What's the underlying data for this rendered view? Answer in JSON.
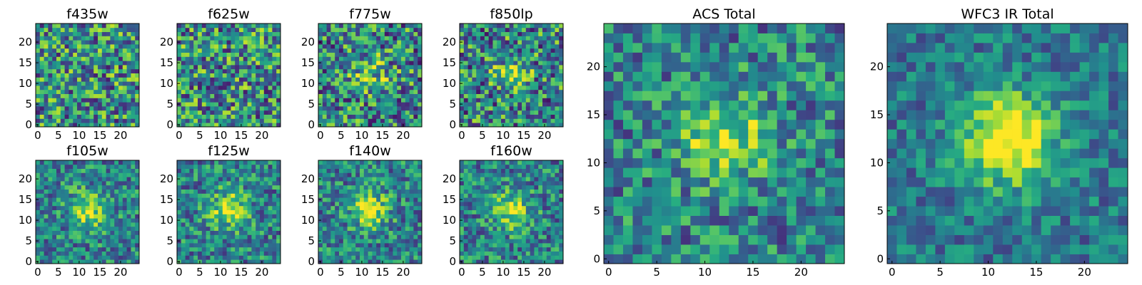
{
  "chart_data": {
    "type": "heatmap",
    "colormap": "viridis",
    "grid_size": 25,
    "panels": [
      {
        "title": "f435w",
        "xticks": [
          0,
          5,
          10,
          15,
          20
        ],
        "yticks": [
          0,
          5,
          10,
          15,
          20
        ],
        "source_signal": "none",
        "noise_level": "high"
      },
      {
        "title": "f625w",
        "xticks": [
          0,
          5,
          10,
          15,
          20
        ],
        "yticks": [
          0,
          5,
          10,
          15,
          20
        ],
        "source_signal": "none",
        "noise_level": "high"
      },
      {
        "title": "f775w",
        "xticks": [
          0,
          5,
          10,
          15,
          20
        ],
        "yticks": [
          0,
          5,
          10,
          15,
          20
        ],
        "source_signal": "weak",
        "noise_level": "high"
      },
      {
        "title": "f850lp",
        "xticks": [
          0,
          5,
          10,
          15,
          20
        ],
        "yticks": [
          0,
          5,
          10,
          15,
          20
        ],
        "source_signal": "weak",
        "noise_level": "high"
      },
      {
        "title": "f105w",
        "xticks": [
          0,
          5,
          10,
          15,
          20
        ],
        "yticks": [
          0,
          5,
          10,
          15,
          20
        ],
        "source_signal": "moderate",
        "noise_level": "medium"
      },
      {
        "title": "f125w",
        "xticks": [
          0,
          5,
          10,
          15,
          20
        ],
        "yticks": [
          0,
          5,
          10,
          15,
          20
        ],
        "source_signal": "moderate",
        "noise_level": "medium"
      },
      {
        "title": "f140w",
        "xticks": [
          0,
          5,
          10,
          15,
          20
        ],
        "yticks": [
          0,
          5,
          10,
          15,
          20
        ],
        "source_signal": "moderate",
        "noise_level": "medium"
      },
      {
        "title": "f160w",
        "xticks": [
          0,
          5,
          10,
          15,
          20
        ],
        "yticks": [
          0,
          5,
          10,
          15,
          20
        ],
        "source_signal": "moderate",
        "noise_level": "medium"
      },
      {
        "title": "ACS Total",
        "xticks": [
          0,
          5,
          10,
          15,
          20
        ],
        "yticks": [
          0,
          5,
          10,
          15,
          20
        ],
        "source_signal": "moderate",
        "noise_level": "medium"
      },
      {
        "title": "WFC3 IR Total",
        "xticks": [
          0,
          5,
          10,
          15,
          20
        ],
        "yticks": [
          0,
          5,
          10,
          15,
          20
        ],
        "source_signal": "strong",
        "noise_level": "low"
      }
    ]
  }
}
